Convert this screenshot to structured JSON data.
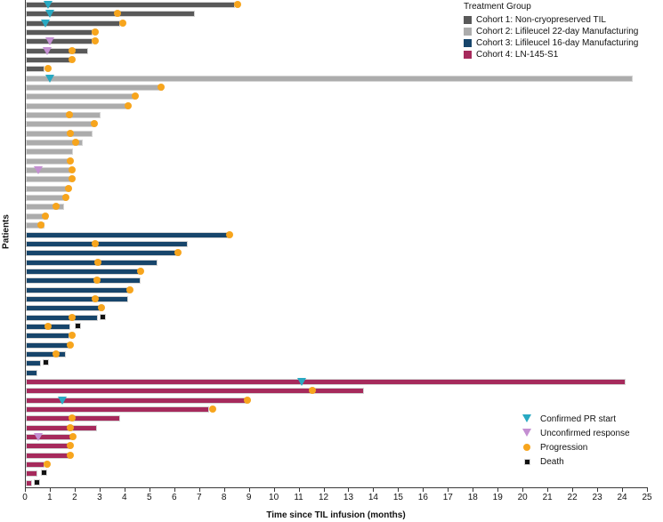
{
  "chart_data": {
    "type": "bar",
    "subtype": "swimmer-plot",
    "title": "",
    "xlabel": "Time since TIL infusion (months)",
    "ylabel": "Patients",
    "xlim": [
      0,
      25
    ],
    "x_ticks": [
      0,
      1,
      2,
      3,
      4,
      5,
      6,
      7,
      8,
      9,
      10,
      11,
      12,
      13,
      14,
      15,
      16,
      17,
      18,
      19,
      20,
      21,
      22,
      23,
      24,
      25
    ],
    "grid": false,
    "legend_title": "Treatment Group",
    "legend_position": "top-right",
    "marker_legend_position": "bottom-right",
    "cohorts": [
      {
        "name": "Cohort 1: Non-cryopreserved TIL",
        "color": "#595959",
        "patients": [
          {
            "months": 8.4,
            "confirmed_pr": 0.9,
            "progression": 8.5
          },
          {
            "months": 6.8,
            "confirmed_pr": 0.95,
            "progression": 3.7
          },
          {
            "months": 3.8,
            "confirmed_pr": 0.8,
            "progression": 3.9
          },
          {
            "months": 2.7,
            "progression": 2.8
          },
          {
            "months": 2.7,
            "unconfirmed": 0.95,
            "progression": 2.8
          },
          {
            "months": 2.5,
            "unconfirmed": 0.85,
            "progression": 1.85
          },
          {
            "months": 1.8,
            "progression": 1.85
          },
          {
            "months": 0.75,
            "progression": 0.9
          }
        ]
      },
      {
        "name": "Cohort 2: Lifileucel 22-day Manufacturing",
        "color": "#ACACAC",
        "patients": [
          {
            "months": 24.4,
            "confirmed_pr": 0.95
          },
          {
            "months": 5.5,
            "progression": 5.45
          },
          {
            "months": 4.4,
            "progression": 4.4
          },
          {
            "months": 4.1,
            "progression": 4.1
          },
          {
            "months": 3.0,
            "progression": 1.75
          },
          {
            "months": 2.8,
            "progression": 2.75
          },
          {
            "months": 2.7,
            "progression": 1.8
          },
          {
            "months": 2.3,
            "progression": 2.0
          },
          {
            "months": 1.9
          },
          {
            "months": 1.8,
            "progression": 1.8
          },
          {
            "months": 1.8,
            "unconfirmed": 0.5,
            "progression": 1.85
          },
          {
            "months": 1.8,
            "progression": 1.85
          },
          {
            "months": 1.65,
            "progression": 1.7
          },
          {
            "months": 1.65,
            "progression": 1.6
          },
          {
            "months": 1.55,
            "progression": 1.2
          },
          {
            "months": 0.9,
            "progression": 0.8
          },
          {
            "months": 0.75,
            "progression": 0.6
          }
        ]
      },
      {
        "name": "Cohort 3: Lifileucel 16-day Manufacturing",
        "color": "#17456B",
        "patients": [
          {
            "months": 8.15,
            "progression": 8.2
          },
          {
            "months": 6.5,
            "progression": 2.8
          },
          {
            "months": 6.2,
            "progression": 6.1
          },
          {
            "months": 5.3,
            "progression": 2.9
          },
          {
            "months": 4.6,
            "progression": 4.6
          },
          {
            "months": 4.6,
            "progression": 2.85
          },
          {
            "months": 4.2,
            "progression": 4.2
          },
          {
            "months": 4.1,
            "progression": 2.8
          },
          {
            "months": 3.1,
            "progression": 3.05
          },
          {
            "months": 2.9,
            "progression": 1.85,
            "death": 3.1
          },
          {
            "months": 1.8,
            "progression": 0.9,
            "death": 2.1
          },
          {
            "months": 1.75,
            "progression": 1.85
          },
          {
            "months": 1.75,
            "progression": 1.8
          },
          {
            "months": 1.6,
            "progression": 1.2
          },
          {
            "months": 0.6,
            "death": 0.8
          },
          {
            "months": 0.45
          }
        ]
      },
      {
        "name": "Cohort 4: LN-145-S1",
        "color": "#A62A5C",
        "patients": [
          {
            "months": 24.1,
            "confirmed_pr": 11.1
          },
          {
            "months": 13.6,
            "progression": 11.5
          },
          {
            "months": 8.9,
            "confirmed_pr": 1.45,
            "progression": 8.9
          },
          {
            "months": 7.35,
            "progression": 7.5
          },
          {
            "months": 3.8,
            "progression": 1.85
          },
          {
            "months": 2.85,
            "progression": 1.8
          },
          {
            "months": 1.9,
            "unconfirmed": 0.5,
            "progression": 1.9
          },
          {
            "months": 1.8,
            "progression": 1.8
          },
          {
            "months": 1.75,
            "progression": 1.8
          },
          {
            "months": 0.75,
            "progression": 0.85
          },
          {
            "months": 0.45,
            "death": 0.75
          },
          {
            "months": 0.25,
            "death": 0.45
          }
        ]
      }
    ],
    "marker_legend": [
      {
        "key": "confirmed_pr",
        "label": "Confirmed PR start",
        "shape": "triangle-down",
        "color": "#29A9C2"
      },
      {
        "key": "unconfirmed",
        "label": "Unconfirmed response",
        "shape": "triangle-down",
        "color": "#C48FD2"
      },
      {
        "key": "progression",
        "label": "Progression",
        "shape": "circle",
        "color": "#F7A51D"
      },
      {
        "key": "death",
        "label": "Death",
        "shape": "square",
        "color": "#121212"
      }
    ]
  }
}
